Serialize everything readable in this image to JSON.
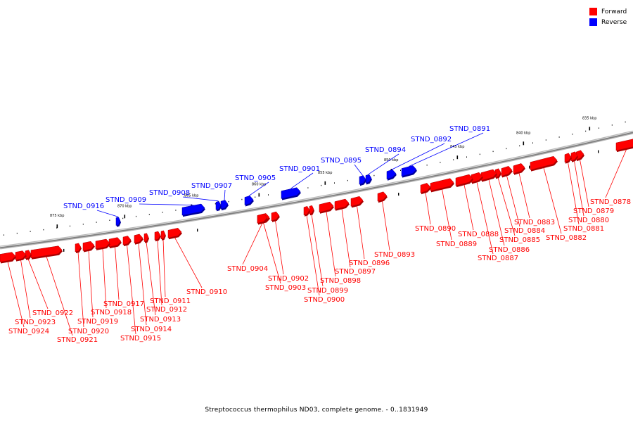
{
  "legend": {
    "forward": {
      "label": "Forward",
      "color": "#ff0000"
    },
    "reverse": {
      "label": "Reverse",
      "color": "#0000ff"
    }
  },
  "caption": "Streptococcus thermophilus ND03, complete genome. - 0..1831949",
  "backbone_color": "#808080",
  "ticks": [
    "835 kbp",
    "840 kbp",
    "845 kbp",
    "850 kbp",
    "855 kbp",
    "860 kbp",
    "865 kbp",
    "870 kbp",
    "875 kbp"
  ],
  "genes": [
    {
      "id": "STND_0878",
      "strand": "forward"
    },
    {
      "id": "STND_0879",
      "strand": "forward"
    },
    {
      "id": "STND_0880",
      "strand": "forward"
    },
    {
      "id": "STND_0881",
      "strand": "forward"
    },
    {
      "id": "STND_0882",
      "strand": "forward"
    },
    {
      "id": "STND_0883",
      "strand": "forward"
    },
    {
      "id": "STND_0884",
      "strand": "forward"
    },
    {
      "id": "STND_0885",
      "strand": "forward"
    },
    {
      "id": "STND_0886",
      "strand": "forward"
    },
    {
      "id": "STND_0887",
      "strand": "forward"
    },
    {
      "id": "STND_0888",
      "strand": "forward"
    },
    {
      "id": "STND_0889",
      "strand": "forward"
    },
    {
      "id": "STND_0890",
      "strand": "forward"
    },
    {
      "id": "STND_0891",
      "strand": "reverse"
    },
    {
      "id": "STND_0892",
      "strand": "reverse"
    },
    {
      "id": "STND_0893",
      "strand": "forward"
    },
    {
      "id": "STND_0894",
      "strand": "reverse"
    },
    {
      "id": "STND_0895",
      "strand": "reverse"
    },
    {
      "id": "STND_0896",
      "strand": "forward"
    },
    {
      "id": "STND_0897",
      "strand": "forward"
    },
    {
      "id": "STND_0898",
      "strand": "forward"
    },
    {
      "id": "STND_0899",
      "strand": "forward"
    },
    {
      "id": "STND_0900",
      "strand": "forward"
    },
    {
      "id": "STND_0901",
      "strand": "reverse"
    },
    {
      "id": "STND_0902",
      "strand": "forward"
    },
    {
      "id": "STND_0903",
      "strand": "forward"
    },
    {
      "id": "STND_0904",
      "strand": "forward"
    },
    {
      "id": "STND_0905",
      "strand": "reverse"
    },
    {
      "id": "STND_0907",
      "strand": "reverse"
    },
    {
      "id": "STND_0908",
      "strand": "reverse"
    },
    {
      "id": "STND_0909",
      "strand": "reverse"
    },
    {
      "id": "STND_0910",
      "strand": "forward"
    },
    {
      "id": "STND_0911",
      "strand": "forward"
    },
    {
      "id": "STND_0912",
      "strand": "forward"
    },
    {
      "id": "STND_0913",
      "strand": "forward"
    },
    {
      "id": "STND_0914",
      "strand": "forward"
    },
    {
      "id": "STND_0915",
      "strand": "forward"
    },
    {
      "id": "STND_0916",
      "strand": "reverse"
    },
    {
      "id": "STND_0917",
      "strand": "forward"
    },
    {
      "id": "STND_0918",
      "strand": "forward"
    },
    {
      "id": "STND_0919",
      "strand": "forward"
    },
    {
      "id": "STND_0920",
      "strand": "forward"
    },
    {
      "id": "STND_0921",
      "strand": "forward"
    },
    {
      "id": "STND_0922",
      "strand": "forward"
    },
    {
      "id": "STND_0923",
      "strand": "forward"
    },
    {
      "id": "STND_0924",
      "strand": "forward"
    }
  ]
}
